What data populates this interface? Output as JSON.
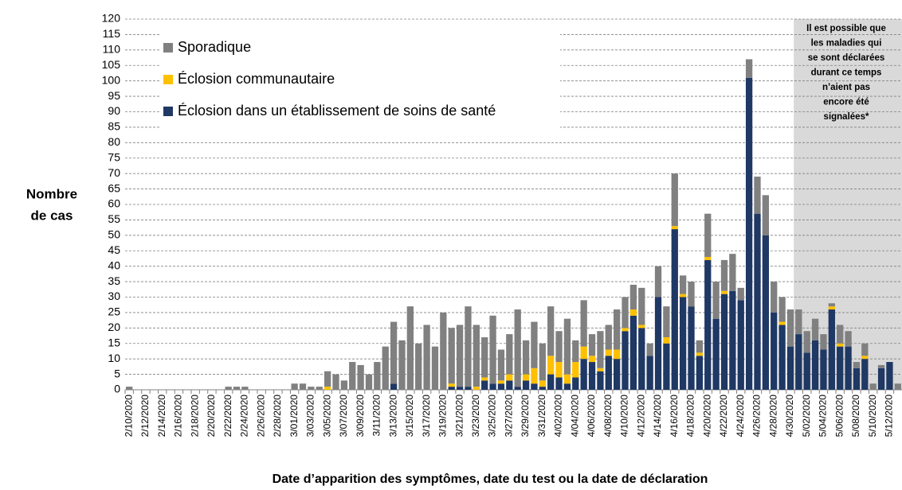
{
  "chart_data": {
    "type": "stacked_bar",
    "ylabel": [
      "Nombre",
      "de cas"
    ],
    "xlabel": "Date d’apparition des symptômes, date du test ou la date de déclaration",
    "annotation": [
      "Il est possible que",
      "les maladies qui",
      "se sont déclarées",
      "durant ce temps",
      "n’aient pas",
      "encore été",
      "signalées*"
    ],
    "categories": [
      "2/10/2020",
      null,
      "2/12/2020",
      null,
      "2/14/2020",
      null,
      "2/16/2020",
      null,
      "2/18/2020",
      null,
      "2/20/2020",
      null,
      "2/22/2020",
      null,
      "2/24/2020",
      null,
      "2/26/2020",
      null,
      "2/28/2020",
      null,
      "3/01/2020",
      null,
      "3/03/2020",
      null,
      "3/05/2020",
      null,
      "3/07/2020",
      null,
      "3/09/2020",
      null,
      "3/11/2020",
      null,
      "3/13/2020",
      null,
      "3/15/2020",
      null,
      "3/17/2020",
      null,
      "3/19/2020",
      null,
      "3/21/2020",
      null,
      "3/23/2020",
      null,
      "3/25/2020",
      null,
      "3/27/2020",
      null,
      "3/29/2020",
      null,
      "3/31/2020",
      null,
      "4/02/2020",
      null,
      "4/04/2020",
      null,
      "4/06/2020",
      null,
      "4/08/2020",
      null,
      "4/10/2020",
      null,
      "4/12/2020",
      null,
      "4/14/2020",
      null,
      "4/16/2020",
      null,
      "4/18/2020",
      null,
      "4/20/2020",
      null,
      "4/22/2020",
      null,
      "4/24/2020",
      null,
      "4/26/2020",
      null,
      "4/28/2020",
      null,
      "4/30/2020",
      null,
      "5/02/2020",
      null,
      "5/04/2020",
      null,
      "5/06/2020",
      null,
      "5/08/2020",
      null,
      "5/10/2020",
      null,
      "5/12/2020",
      null
    ],
    "series": [
      {
        "name": "Sporadique",
        "color": "#808080",
        "values": [
          1,
          0,
          0,
          0,
          0,
          0,
          0,
          0,
          0,
          0,
          0,
          0,
          1,
          1,
          1,
          0,
          0,
          0,
          0,
          0,
          2,
          2,
          1,
          1,
          5,
          5,
          3,
          9,
          8,
          5,
          9,
          14,
          20,
          16,
          27,
          15,
          21,
          14,
          25,
          18,
          20,
          26,
          20,
          13,
          22,
          10,
          13,
          25,
          11,
          15,
          12,
          16,
          10,
          18,
          7,
          15,
          7,
          12,
          8,
          13,
          10,
          8,
          12,
          4,
          10,
          10,
          17,
          6,
          8,
          4,
          14,
          12,
          10,
          12,
          4,
          6,
          12,
          13,
          10,
          8,
          12,
          8,
          7,
          7,
          5,
          1,
          6,
          5,
          2,
          4,
          2,
          1,
          0,
          2
        ]
      },
      {
        "name": "Éclosion communautaire",
        "color": "#ffc000",
        "values": [
          0,
          0,
          0,
          0,
          0,
          0,
          0,
          0,
          0,
          0,
          0,
          0,
          0,
          0,
          0,
          0,
          0,
          0,
          0,
          0,
          0,
          0,
          0,
          0,
          1,
          0,
          0,
          0,
          0,
          0,
          0,
          0,
          0,
          0,
          0,
          0,
          0,
          0,
          0,
          1,
          0,
          0,
          1,
          1,
          0,
          1,
          2,
          0,
          2,
          5,
          2,
          6,
          5,
          3,
          5,
          4,
          2,
          1,
          2,
          3,
          1,
          2,
          1,
          0,
          0,
          2,
          1,
          1,
          0,
          1,
          1,
          0,
          1,
          0,
          0,
          0,
          0,
          0,
          0,
          1,
          0,
          0,
          0,
          0,
          0,
          1,
          1,
          0,
          0,
          1,
          0,
          0,
          0,
          0
        ]
      },
      {
        "name": "Éclosion dans un établissement de soins de santé",
        "color": "#1f3864",
        "values": [
          0,
          0,
          0,
          0,
          0,
          0,
          0,
          0,
          0,
          0,
          0,
          0,
          0,
          0,
          0,
          0,
          0,
          0,
          0,
          0,
          0,
          0,
          0,
          0,
          0,
          0,
          0,
          0,
          0,
          0,
          0,
          0,
          2,
          0,
          0,
          0,
          0,
          0,
          0,
          1,
          1,
          1,
          0,
          3,
          2,
          2,
          3,
          1,
          3,
          2,
          1,
          5,
          4,
          2,
          4,
          10,
          9,
          6,
          11,
          10,
          19,
          24,
          20,
          11,
          30,
          15,
          52,
          30,
          27,
          11,
          42,
          23,
          31,
          32,
          29,
          101,
          57,
          50,
          25,
          21,
          14,
          18,
          12,
          16,
          13,
          26,
          14,
          14,
          7,
          10,
          0,
          7,
          9,
          0
        ]
      }
    ],
    "ylim": [
      0,
      120
    ],
    "yticks": [
      0,
      5,
      10,
      15,
      20,
      25,
      30,
      35,
      40,
      45,
      50,
      55,
      60,
      65,
      70,
      75,
      80,
      85,
      90,
      95,
      100,
      105,
      110,
      115,
      120
    ],
    "grid": true
  }
}
